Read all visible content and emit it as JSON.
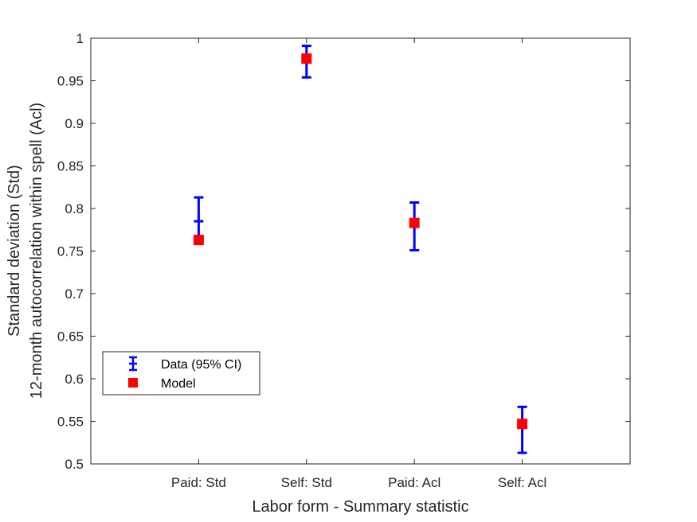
{
  "chart_data": {
    "type": "scatter",
    "xlabel": "Labor form - Summary statistic",
    "ylabel_lines": [
      "Standard deviation (Std)",
      "12-month autocorrelation within spell (Acl)"
    ],
    "categories": [
      "Paid: Std",
      "Self: Std",
      "Paid: Acl",
      "Self: Acl"
    ],
    "ylim": [
      0.5,
      1
    ],
    "yticks": [
      "0.5",
      "0.55",
      "0.6",
      "0.65",
      "0.7",
      "0.75",
      "0.8",
      "0.85",
      "0.9",
      "0.95",
      "1"
    ],
    "grid": false,
    "legend_position": "lower-left",
    "series": [
      {
        "name": "Data (95% CI)",
        "style": "errorbar",
        "color": "#0000ff",
        "values": [
          0.785,
          0.976,
          0.783,
          0.547
        ],
        "lower": [
          0.762,
          0.954,
          0.751,
          0.513
        ],
        "upper": [
          0.813,
          0.991,
          0.807,
          0.567
        ]
      },
      {
        "name": "Model",
        "style": "square-marker",
        "color": "#ff0000",
        "values": [
          0.763,
          0.976,
          0.783,
          0.547
        ]
      }
    ]
  }
}
